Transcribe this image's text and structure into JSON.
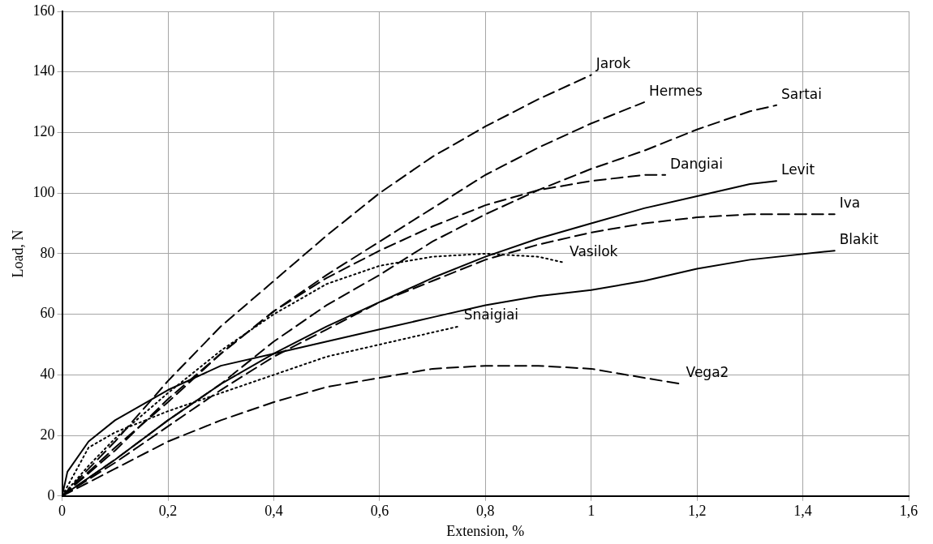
{
  "chart_data": {
    "type": "line",
    "xlabel": "Extension, %",
    "ylabel": "Load, N",
    "xlim": [
      0,
      1.6
    ],
    "ylim": [
      0,
      160
    ],
    "xticks": [
      0,
      {
        "value": 0.2,
        "label": "0,2"
      },
      {
        "value": 0.4,
        "label": "0,4"
      },
      {
        "value": 0.6,
        "label": "0,6"
      },
      {
        "value": 0.8,
        "label": "0,8"
      },
      1,
      {
        "value": 1.2,
        "label": "1,2"
      },
      {
        "value": 1.4,
        "label": "1,4"
      },
      {
        "value": 1.6,
        "label": "1,6"
      }
    ],
    "yticks": [
      0,
      20,
      40,
      60,
      80,
      100,
      120,
      140,
      160
    ],
    "grid": true,
    "legend": false,
    "marker": "none",
    "series": [
      {
        "name": "Jarok",
        "color": "#000000",
        "line_style": "dashed",
        "x": [
          0,
          0.1,
          0.2,
          0.3,
          0.4,
          0.5,
          0.6,
          0.7,
          0.8,
          0.9,
          1.0
        ],
        "values": [
          0,
          18,
          38,
          56,
          71,
          86,
          100,
          112,
          122,
          131,
          139
        ]
      },
      {
        "name": "Hermes",
        "color": "#000000",
        "line_style": "dashed",
        "x": [
          0,
          0.1,
          0.2,
          0.3,
          0.4,
          0.5,
          0.6,
          0.7,
          0.8,
          0.9,
          1.0,
          1.1
        ],
        "values": [
          0,
          15,
          32,
          47,
          61,
          73,
          84,
          95,
          106,
          115,
          123,
          130
        ]
      },
      {
        "name": "Sartai",
        "color": "#000000",
        "line_style": "dashed",
        "x": [
          0,
          0.1,
          0.2,
          0.3,
          0.4,
          0.5,
          0.6,
          0.7,
          0.8,
          0.9,
          1.0,
          1.1,
          1.2,
          1.3,
          1.35
        ],
        "values": [
          0,
          12,
          25,
          37,
          51,
          63,
          73,
          84,
          93,
          101,
          108,
          114,
          121,
          127,
          129
        ]
      },
      {
        "name": "Dangiai",
        "color": "#000000",
        "line_style": "dashed",
        "x": [
          0,
          0.1,
          0.2,
          0.3,
          0.4,
          0.5,
          0.6,
          0.7,
          0.8,
          0.9,
          1.0,
          1.1,
          1.14
        ],
        "values": [
          0,
          16,
          31,
          47,
          61,
          72,
          81,
          89,
          96,
          101,
          104,
          106,
          106
        ]
      },
      {
        "name": "Levit",
        "color": "#000000",
        "line_style": "solid",
        "x": [
          0,
          0.1,
          0.2,
          0.3,
          0.4,
          0.5,
          0.6,
          0.7,
          0.8,
          0.9,
          1.0,
          1.1,
          1.2,
          1.3,
          1.35
        ],
        "values": [
          0,
          12,
          25,
          37,
          47,
          56,
          64,
          72,
          79,
          85,
          90,
          95,
          99,
          103,
          104
        ]
      },
      {
        "name": "Iva",
        "color": "#000000",
        "line_style": "dashed",
        "x": [
          0,
          0.1,
          0.2,
          0.3,
          0.4,
          0.5,
          0.6,
          0.7,
          0.8,
          0.9,
          1.0,
          1.1,
          1.2,
          1.3,
          1.46
        ],
        "values": [
          0,
          11,
          23,
          35,
          46,
          55,
          64,
          71,
          78,
          83,
          87,
          90,
          92,
          93,
          93
        ]
      },
      {
        "name": "Vasilok",
        "color": "#000000",
        "line_style": "dotted",
        "x": [
          0,
          0.05,
          0.1,
          0.2,
          0.3,
          0.4,
          0.5,
          0.6,
          0.7,
          0.8,
          0.9,
          0.95
        ],
        "values": [
          0,
          10,
          19,
          34,
          48,
          60,
          70,
          76,
          79,
          80,
          79,
          77
        ]
      },
      {
        "name": "Blakit",
        "color": "#000000",
        "line_style": "solid",
        "x": [
          0,
          0.01,
          0.05,
          0.1,
          0.2,
          0.3,
          0.4,
          0.5,
          0.6,
          0.7,
          0.8,
          0.9,
          1.0,
          1.1,
          1.2,
          1.3,
          1.46
        ],
        "values": [
          0,
          8,
          18,
          25,
          35,
          43,
          47,
          51,
          55,
          59,
          63,
          66,
          68,
          71,
          75,
          78,
          81
        ]
      },
      {
        "name": "Snaigiai",
        "color": "#000000",
        "line_style": "dotted",
        "x": [
          0,
          0.05,
          0.1,
          0.2,
          0.3,
          0.4,
          0.5,
          0.6,
          0.7,
          0.75
        ],
        "values": [
          0,
          16,
          21,
          28,
          34,
          40,
          46,
          50,
          54,
          56
        ]
      },
      {
        "name": "Vega2",
        "color": "#000000",
        "line_style": "dashed",
        "x": [
          0,
          0.1,
          0.2,
          0.3,
          0.4,
          0.5,
          0.6,
          0.7,
          0.8,
          0.9,
          1.0,
          1.1,
          1.17
        ],
        "values": [
          0,
          9,
          18,
          25,
          31,
          36,
          39,
          42,
          43,
          43,
          42,
          39,
          37
        ]
      }
    ]
  }
}
